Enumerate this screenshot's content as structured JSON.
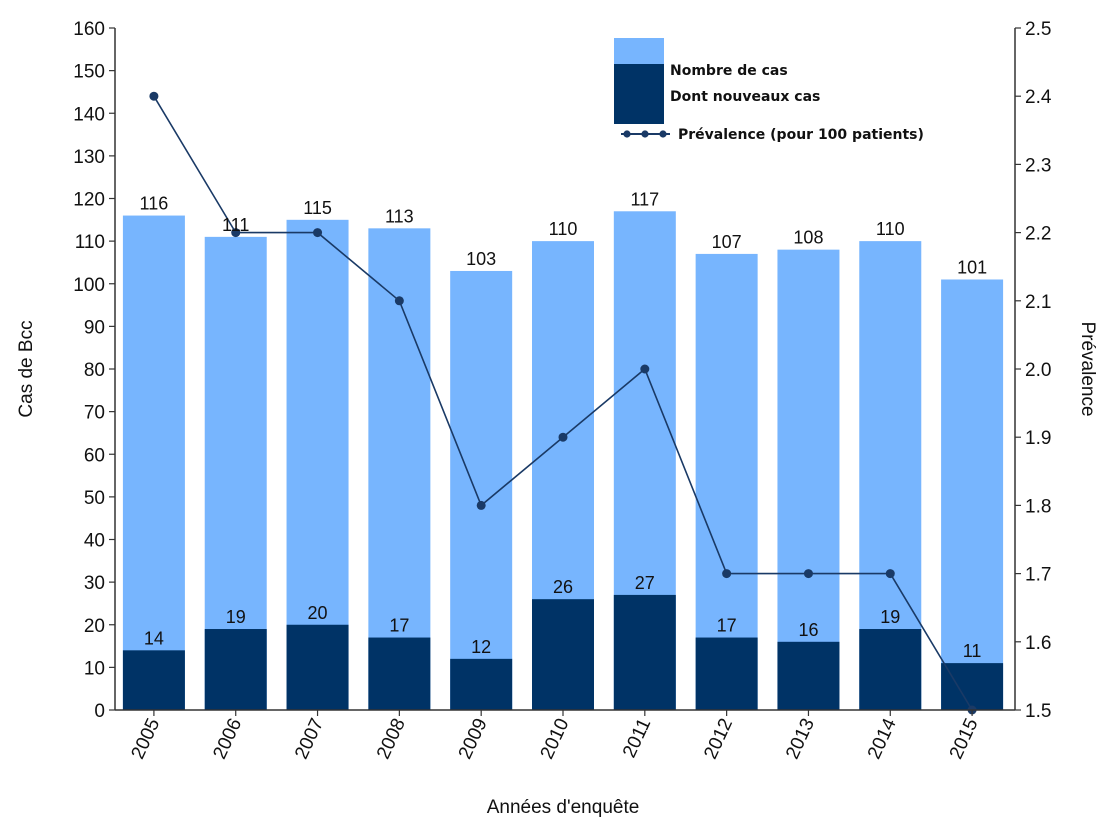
{
  "chart_data": {
    "type": "bar",
    "categories": [
      "2005",
      "2006",
      "2007",
      "2008",
      "2009",
      "2010",
      "2011",
      "2012",
      "2013",
      "2014",
      "2015"
    ],
    "series": [
      {
        "name": "Nombre de cas",
        "type": "bar",
        "axis": "left",
        "color": "#77b5fe",
        "values": [
          116,
          111,
          115,
          113,
          103,
          110,
          117,
          107,
          108,
          110,
          101
        ]
      },
      {
        "name": "Dont nouveaux cas",
        "type": "bar",
        "axis": "left",
        "color": "#003366",
        "values": [
          14,
          19,
          20,
          17,
          12,
          26,
          27,
          17,
          16,
          19,
          11
        ]
      },
      {
        "name": "Prévalence (pour 100 patients)",
        "type": "line",
        "axis": "right",
        "color": "#1a3a66",
        "values": [
          2.4,
          2.2,
          2.2,
          2.1,
          1.8,
          1.9,
          2.0,
          1.7,
          1.7,
          1.7,
          1.5
        ]
      }
    ],
    "xlabel": "Années d'enquête",
    "ylabel": "Cas de Bcc",
    "y2label": "Prévalence",
    "ylim": [
      0,
      160
    ],
    "y2lim": [
      1.5,
      2.5
    ],
    "yticks": [
      0,
      10,
      20,
      30,
      40,
      50,
      60,
      70,
      80,
      90,
      100,
      110,
      120,
      130,
      140,
      150,
      160
    ],
    "y2ticks": [
      "1.5",
      "1.6",
      "1.7",
      "1.8",
      "1.9",
      "2.0",
      "2.1",
      "2.2",
      "2.3",
      "2.4",
      "2.5"
    ],
    "grid": false,
    "legend_position": "top-right"
  }
}
